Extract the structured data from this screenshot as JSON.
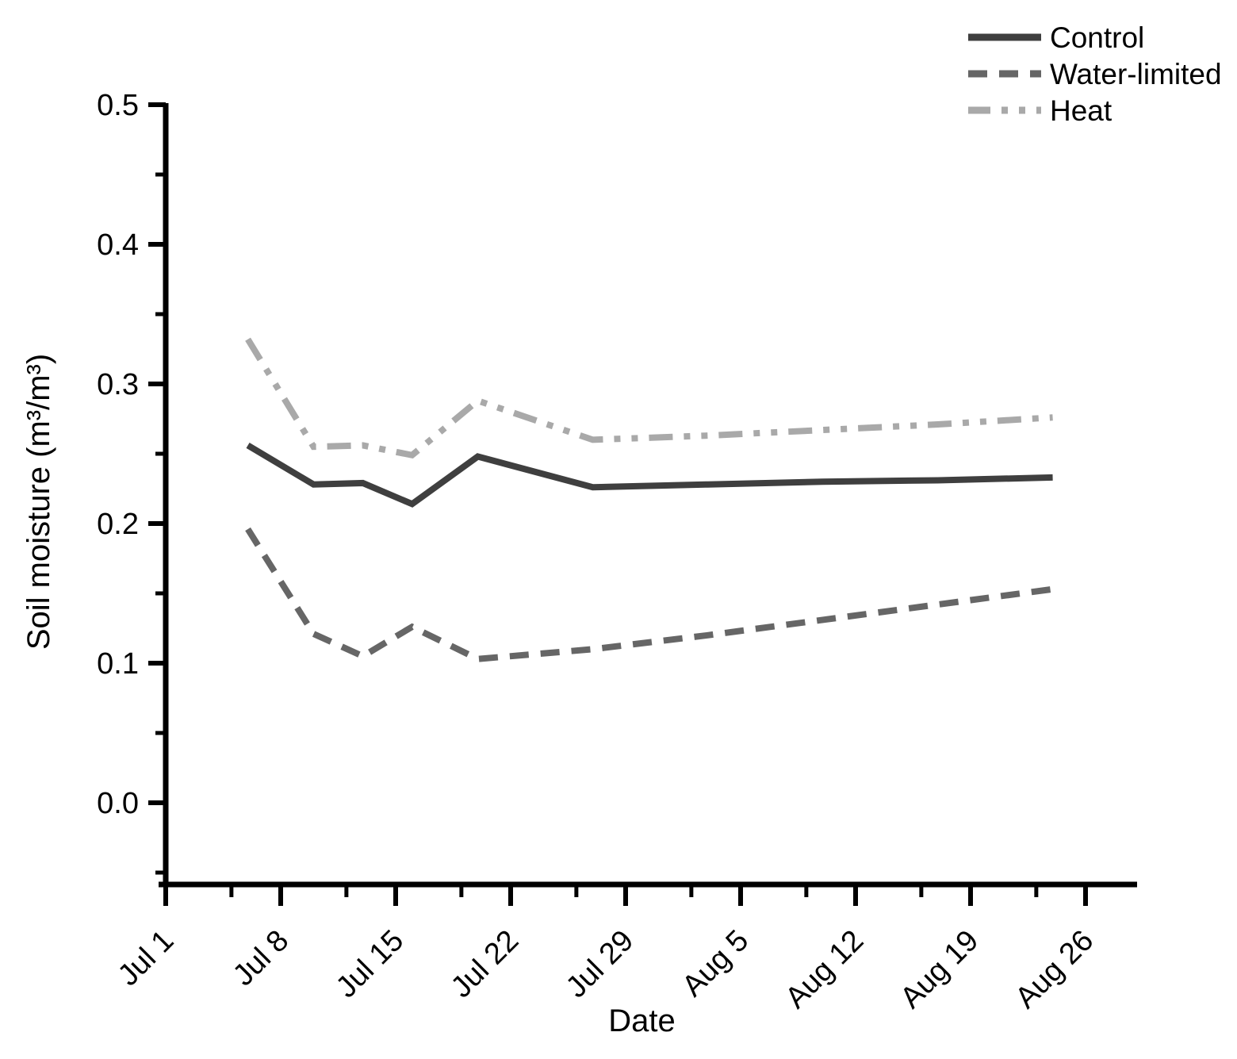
{
  "chart_data": {
    "type": "line",
    "title": "",
    "xlabel": "Date",
    "ylabel": "Soil moisture (m³/m³)",
    "grid": false,
    "legend_position": "top-right",
    "background_color": "#ffffff",
    "axis_color": "#000000",
    "xlim_days_from_jul1": [
      0,
      59.2
    ],
    "ylim": [
      -0.058,
      0.501
    ],
    "x_axis": {
      "label": "Date",
      "major_ticks": [
        {
          "day": 0,
          "label": "Jul 1"
        },
        {
          "day": 7,
          "label": "Jul 8"
        },
        {
          "day": 14,
          "label": "Jul 15"
        },
        {
          "day": 21,
          "label": "Jul 22"
        },
        {
          "day": 28,
          "label": "Jul 29"
        },
        {
          "day": 35,
          "label": "Aug 5"
        },
        {
          "day": 42,
          "label": "Aug 12"
        },
        {
          "day": 49,
          "label": "Aug 19"
        },
        {
          "day": 56,
          "label": "Aug 26"
        }
      ],
      "minor_tick_days": [
        4,
        11,
        18,
        25,
        32,
        39,
        46,
        53
      ]
    },
    "y_axis": {
      "label": "Soil moisture (m³/m³)",
      "major_ticks": [
        {
          "value": 0.0,
          "label": "0.0"
        },
        {
          "value": 0.1,
          "label": "0.1"
        },
        {
          "value": 0.2,
          "label": "0.2"
        },
        {
          "value": 0.3,
          "label": "0.3"
        },
        {
          "value": 0.4,
          "label": "0.4"
        },
        {
          "value": 0.5,
          "label": "0.5"
        }
      ],
      "minor_tick_values": [
        -0.05,
        0.05,
        0.15,
        0.25,
        0.35,
        0.45
      ]
    },
    "x_dates": [
      "Jul 6",
      "Jul 10",
      "Jul 13",
      "Jul 16",
      "Jul 20",
      "Jul 27",
      "Aug 3",
      "Aug 10",
      "Aug 17",
      "Aug 24"
    ],
    "x_days_from_jul1": [
      5,
      9,
      12,
      15,
      19,
      26,
      33,
      40,
      47,
      54
    ],
    "series": [
      {
        "name": "Control",
        "line_style": "solid",
        "color": "#3f3f3f",
        "values": [
          0.256,
          0.228,
          0.229,
          0.214,
          0.248,
          0.226,
          0.228,
          0.23,
          0.231,
          0.233
        ]
      },
      {
        "name": "Water-limited",
        "line_style": "dashed",
        "color": "#666666",
        "values": [
          0.196,
          0.121,
          0.105,
          0.126,
          0.103,
          0.11,
          0.12,
          0.131,
          0.142,
          0.153
        ]
      },
      {
        "name": "Heat",
        "line_style": "dash-dot-dot",
        "color": "#a9a9a9",
        "values": [
          0.332,
          0.255,
          0.256,
          0.249,
          0.288,
          0.26,
          0.263,
          0.267,
          0.271,
          0.276
        ]
      }
    ],
    "legend_labels": [
      "Control",
      "Water-limited",
      "Heat"
    ]
  }
}
